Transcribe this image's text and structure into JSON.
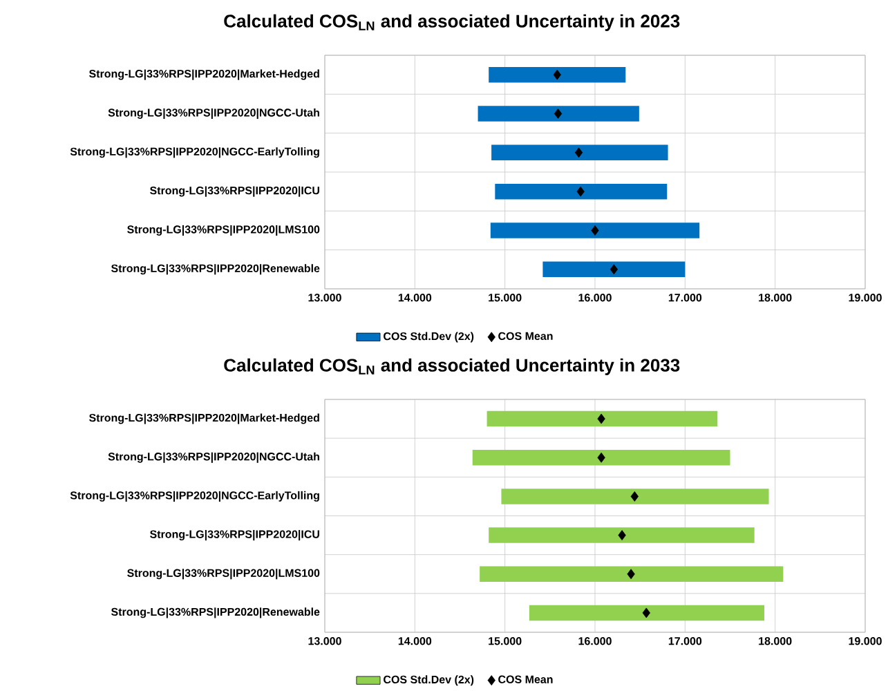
{
  "chart_data": [
    {
      "type": "bar",
      "orientation": "horizontal",
      "title": "Calculated COS$_{LN}$ and associated Uncertainty in 2023",
      "categories": [
        "Strong-LG|33%RPS|IPP2020|Market-Hedged",
        "Strong-LG|33%RPS|IPP2020|NGCC-Utah",
        "Strong-LG|33%RPS|IPP2020|NGCC-EarlyTolling",
        "Strong-LG|33%RPS|IPP2020|ICU",
        "Strong-LG|33%RPS|IPP2020|LMS100",
        "Strong-LG|33%RPS|IPP2020|Renewable"
      ],
      "series": [
        {
          "name": "COS Std.Dev (2x)",
          "color": "#0070c0",
          "base": [
            14.82,
            14.7,
            14.85,
            14.89,
            14.84,
            15.42
          ],
          "values": [
            1.52,
            1.79,
            1.96,
            1.91,
            2.32,
            1.58
          ]
        },
        {
          "name": "COS Mean",
          "type": "scatter",
          "marker": "diamond",
          "color": "#000000",
          "values": [
            15.58,
            15.59,
            15.82,
            15.84,
            16.0,
            16.21
          ]
        }
      ],
      "xlim": [
        13,
        19
      ],
      "xticks": [
        {
          "value": 13,
          "label": "13.000"
        },
        {
          "value": 14,
          "label": "14.000"
        },
        {
          "value": 15,
          "label": "15.000"
        },
        {
          "value": 16,
          "label": "16.000"
        },
        {
          "value": 17,
          "label": "17.000"
        },
        {
          "value": 18,
          "label": "18.000"
        },
        {
          "value": 19,
          "label": "19.000"
        }
      ],
      "grid": true,
      "legend": "bottom"
    },
    {
      "type": "bar",
      "orientation": "horizontal",
      "title": "Calculated COS$_{LN}$ and associated Uncertainty in 2033",
      "categories": [
        "Strong-LG|33%RPS|IPP2020|Market-Hedged",
        "Strong-LG|33%RPS|IPP2020|NGCC-Utah",
        "Strong-LG|33%RPS|IPP2020|NGCC-EarlyTolling",
        "Strong-LG|33%RPS|IPP2020|ICU",
        "Strong-LG|33%RPS|IPP2020|LMS100",
        "Strong-LG|33%RPS|IPP2020|Renewable"
      ],
      "series": [
        {
          "name": "COS Std.Dev (2x)",
          "color": "#92d050",
          "base": [
            14.8,
            14.64,
            14.96,
            14.82,
            14.72,
            15.27
          ],
          "values": [
            2.56,
            2.86,
            2.97,
            2.95,
            3.37,
            2.61
          ]
        },
        {
          "name": "COS Mean",
          "type": "scatter",
          "marker": "diamond",
          "color": "#000000",
          "values": [
            16.07,
            16.07,
            16.44,
            16.3,
            16.4,
            16.57
          ]
        }
      ],
      "xlim": [
        13,
        19
      ],
      "xticks": [
        {
          "value": 13,
          "label": "13.000"
        },
        {
          "value": 14,
          "label": "14.000"
        },
        {
          "value": 15,
          "label": "15.000"
        },
        {
          "value": 16,
          "label": "16.000"
        },
        {
          "value": 17,
          "label": "17.000"
        },
        {
          "value": 18,
          "label": "18.000"
        },
        {
          "value": 19,
          "label": "19.000"
        }
      ],
      "grid": true,
      "legend": "bottom"
    }
  ]
}
